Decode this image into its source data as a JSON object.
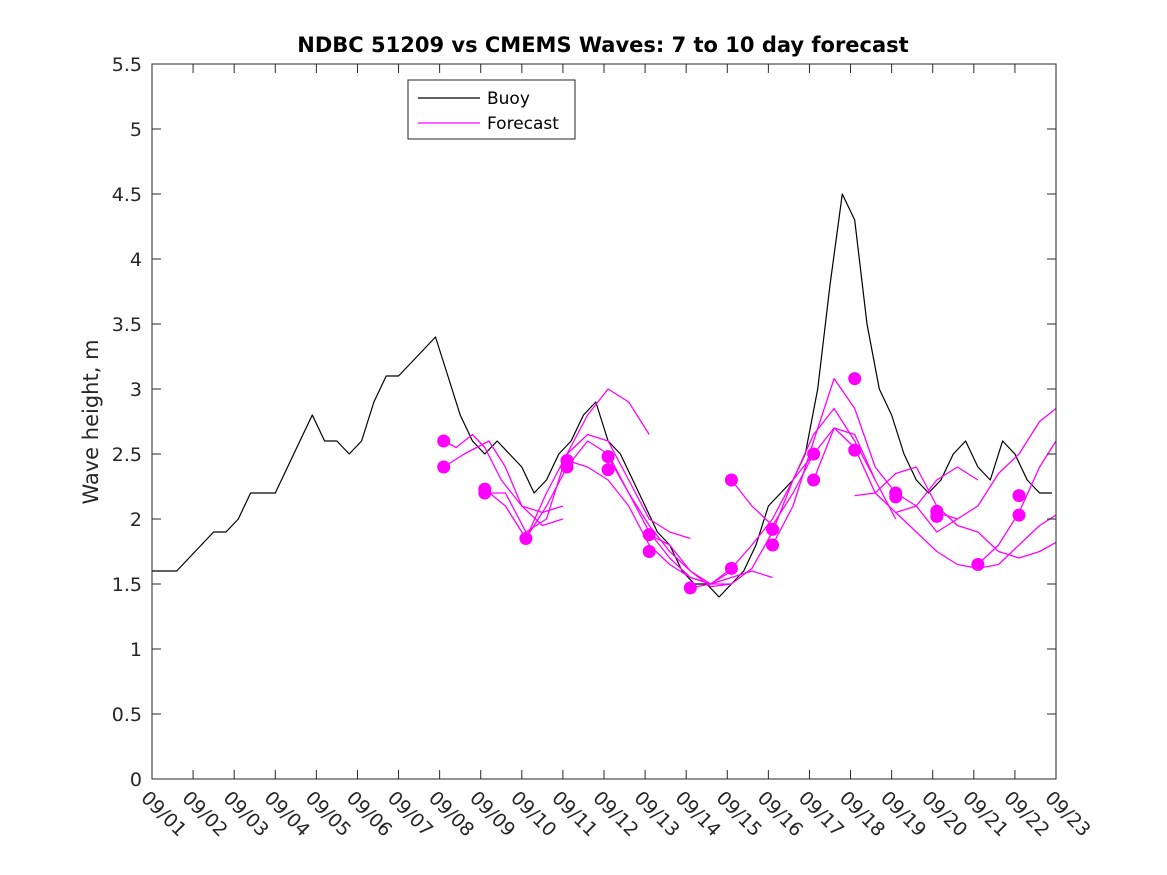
{
  "chart_data": {
    "type": "line",
    "title": "NDBC 51209 vs CMEMS Waves: 7 to 10 day forecast",
    "xlabel": "",
    "ylabel": "Wave height, m",
    "xlim": [
      0,
      22
    ],
    "ylim": [
      0,
      5.5
    ],
    "yticks": [
      0,
      0.5,
      1,
      1.5,
      2,
      2.5,
      3,
      3.5,
      4,
      4.5,
      5,
      5.5
    ],
    "ytick_labels": [
      "0",
      "0.5",
      "1",
      "1.5",
      "2",
      "2.5",
      "3",
      "3.5",
      "4",
      "4.5",
      "5",
      "5.5"
    ],
    "xtick_labels": [
      "09/01",
      "09/02",
      "09/03",
      "09/04",
      "09/05",
      "09/06",
      "09/07",
      "09/08",
      "09/09",
      "09/10",
      "09/11",
      "09/12",
      "09/13",
      "09/14",
      "09/15",
      "09/16",
      "09/17",
      "09/18",
      "09/19",
      "09/20",
      "09/21",
      "09/22",
      "09/23"
    ],
    "legend": {
      "position": "top-left",
      "entries": [
        "Buoy",
        "Forecast"
      ]
    },
    "colors": {
      "buoy": "#000000",
      "forecast": "#ff00ff"
    },
    "series": [
      {
        "name": "Buoy",
        "x": [
          0,
          0.3,
          0.6,
          0.9,
          1.2,
          1.5,
          1.8,
          2.1,
          2.4,
          2.7,
          3.0,
          3.3,
          3.6,
          3.9,
          4.2,
          4.5,
          4.8,
          5.1,
          5.4,
          5.7,
          6.0,
          6.3,
          6.6,
          6.9,
          7.2,
          7.5,
          7.8,
          8.1,
          8.4,
          8.7,
          9.0,
          9.3,
          9.6,
          9.9,
          10.2,
          10.5,
          10.8,
          11.1,
          11.4,
          11.7,
          12.0,
          12.3,
          12.6,
          12.9,
          13.2,
          13.5,
          13.8,
          14.1,
          14.4,
          14.7,
          15.0,
          15.3,
          15.6,
          15.9,
          16.2,
          16.5,
          16.8,
          17.1,
          17.4,
          17.7,
          18.0,
          18.3,
          18.6,
          18.9,
          19.2,
          19.5,
          19.8,
          20.1,
          20.4,
          20.7,
          21.0,
          21.3,
          21.6,
          21.9
        ],
        "y": [
          1.6,
          1.6,
          1.6,
          1.7,
          1.8,
          1.9,
          1.9,
          2.0,
          2.2,
          2.2,
          2.2,
          2.4,
          2.6,
          2.8,
          2.6,
          2.6,
          2.5,
          2.6,
          2.9,
          3.1,
          3.1,
          3.2,
          3.3,
          3.4,
          3.1,
          2.8,
          2.6,
          2.5,
          2.6,
          2.5,
          2.4,
          2.2,
          2.3,
          2.5,
          2.6,
          2.8,
          2.9,
          2.6,
          2.5,
          2.3,
          2.1,
          1.9,
          1.8,
          1.6,
          1.5,
          1.5,
          1.4,
          1.5,
          1.6,
          1.8,
          2.1,
          2.2,
          2.3,
          2.5,
          3.0,
          3.8,
          4.5,
          4.3,
          3.5,
          3.0,
          2.8,
          2.5,
          2.3,
          2.2,
          2.3,
          2.5,
          2.6,
          2.4,
          2.3,
          2.6,
          2.5,
          2.3,
          2.2,
          2.2
        ]
      },
      {
        "name": "Forecast 1",
        "x": [
          7.1,
          7.6,
          8.2,
          8.6,
          9.0,
          9.5,
          10.0
        ],
        "y": [
          2.4,
          2.5,
          2.6,
          2.4,
          2.1,
          1.95,
          2.0
        ]
      },
      {
        "name": "Forecast 2",
        "x": [
          7.1,
          7.4,
          7.8,
          8.1,
          8.5,
          9.0,
          9.5,
          10.0
        ],
        "y": [
          2.6,
          2.55,
          2.65,
          2.55,
          2.3,
          2.1,
          2.05,
          2.1
        ]
      },
      {
        "name": "Forecast 3",
        "x": [
          8.1,
          8.6,
          9.1,
          9.6,
          10.1,
          10.6,
          11.1,
          11.6,
          12.1
        ],
        "y": [
          2.2,
          2.2,
          1.9,
          2.0,
          2.5,
          2.8,
          3.0,
          2.9,
          2.65
        ]
      },
      {
        "name": "Forecast 4",
        "x": [
          8.1,
          8.6,
          9.1,
          9.6,
          10.1,
          10.6,
          11.1,
          11.6,
          12.1,
          12.6,
          13.1
        ],
        "y": [
          2.23,
          2.1,
          1.85,
          2.2,
          2.5,
          2.65,
          2.6,
          2.3,
          2.0,
          1.9,
          1.85
        ]
      },
      {
        "name": "Forecast 5",
        "x": [
          9.1,
          9.6,
          10.1,
          10.6,
          11.1,
          11.6,
          12.1,
          12.6,
          13.1,
          13.6,
          14.1
        ],
        "y": [
          1.85,
          2.1,
          2.4,
          2.6,
          2.5,
          2.2,
          1.95,
          1.75,
          1.6,
          1.5,
          1.5
        ]
      },
      {
        "name": "Forecast 6",
        "x": [
          10.1,
          10.6,
          11.1,
          11.6,
          12.1,
          12.6,
          13.1,
          13.6,
          14.1
        ],
        "y": [
          2.45,
          2.4,
          2.3,
          2.1,
          1.8,
          1.65,
          1.55,
          1.5,
          1.6
        ]
      },
      {
        "name": "Forecast 7",
        "x": [
          11.1,
          11.6,
          12.1,
          12.6,
          13.1,
          13.6,
          14.1,
          14.6,
          15.1
        ],
        "y": [
          2.48,
          2.2,
          1.9,
          1.7,
          1.55,
          1.5,
          1.55,
          1.6,
          1.55
        ]
      },
      {
        "name": "Forecast 8",
        "x": [
          12.1,
          12.6,
          13.1,
          13.6,
          14.1,
          14.6,
          15.1,
          15.6,
          16.1
        ],
        "y": [
          1.88,
          1.8,
          1.6,
          1.48,
          1.5,
          1.62,
          1.9,
          2.3,
          2.5
        ]
      },
      {
        "name": "Forecast 9",
        "x": [
          13.1,
          13.6,
          14.1,
          14.6,
          15.1,
          15.6,
          16.1,
          16.6,
          17.1,
          17.6
        ],
        "y": [
          1.47,
          1.5,
          1.62,
          1.8,
          2.0,
          2.3,
          2.65,
          2.85,
          2.6,
          2.3
        ]
      },
      {
        "name": "Forecast 10",
        "x": [
          14.1,
          14.6,
          15.1,
          15.6,
          16.1,
          16.6,
          17.1,
          17.6,
          18.1
        ],
        "y": [
          2.3,
          2.1,
          1.95,
          2.2,
          2.5,
          2.7,
          2.65,
          2.3,
          2.0
        ]
      },
      {
        "name": "Forecast 11",
        "x": [
          15.1,
          15.6,
          16.1,
          16.6,
          17.1,
          17.6,
          18.1,
          18.6,
          19.1,
          19.6
        ],
        "y": [
          1.8,
          2.1,
          2.6,
          3.08,
          2.85,
          2.4,
          2.2,
          2.1,
          1.9,
          2.0
        ]
      },
      {
        "name": "Forecast 12",
        "x": [
          16.1,
          16.6,
          17.1,
          17.6,
          18.1,
          18.6,
          19.1,
          19.6,
          20.1
        ],
        "y": [
          2.3,
          2.7,
          2.55,
          2.2,
          2.05,
          2.1,
          2.3,
          2.4,
          2.3
        ]
      },
      {
        "name": "Forecast 13",
        "x": [
          17.1,
          17.6,
          18.1,
          18.6,
          19.1,
          19.6,
          20.1,
          20.6,
          21.1,
          21.6,
          22.0
        ],
        "y": [
          2.18,
          2.2,
          2.35,
          2.4,
          2.1,
          1.95,
          1.9,
          1.75,
          1.7,
          1.75,
          1.82
        ]
      },
      {
        "name": "Forecast 14",
        "x": [
          18.1,
          18.6,
          19.1,
          19.6,
          20.1,
          20.6,
          21.1,
          21.6,
          22.0
        ],
        "y": [
          2.05,
          1.9,
          1.75,
          1.65,
          1.62,
          1.65,
          1.8,
          1.95,
          2.03
        ]
      },
      {
        "name": "Forecast 15",
        "x": [
          19.1,
          19.6,
          20.1,
          20.6,
          21.1,
          21.6,
          22.0
        ],
        "y": [
          2.05,
          2.0,
          2.1,
          2.35,
          2.5,
          2.75,
          2.85
        ]
      },
      {
        "name": "Forecast 16",
        "x": [
          20.1,
          20.6,
          21.1,
          21.6,
          22.0
        ],
        "y": [
          1.65,
          1.8,
          2.05,
          2.4,
          2.6
        ]
      }
    ],
    "forecast_initial_points": {
      "x": [
        7.1,
        7.1,
        8.1,
        8.1,
        9.1,
        10.1,
        10.1,
        11.1,
        11.1,
        12.1,
        12.1,
        13.1,
        14.1,
        14.1,
        15.1,
        15.1,
        16.1,
        16.1,
        17.1,
        17.1,
        18.1,
        18.1,
        19.1,
        19.1,
        20.1,
        21.1,
        21.1
      ],
      "y": [
        2.4,
        2.6,
        2.2,
        2.23,
        1.85,
        2.4,
        2.45,
        2.38,
        2.48,
        1.75,
        1.88,
        1.47,
        1.62,
        2.3,
        1.8,
        1.92,
        2.3,
        2.5,
        2.53,
        3.08,
        2.17,
        2.2,
        2.02,
        2.06,
        1.65,
        2.03,
        2.18
      ]
    }
  }
}
